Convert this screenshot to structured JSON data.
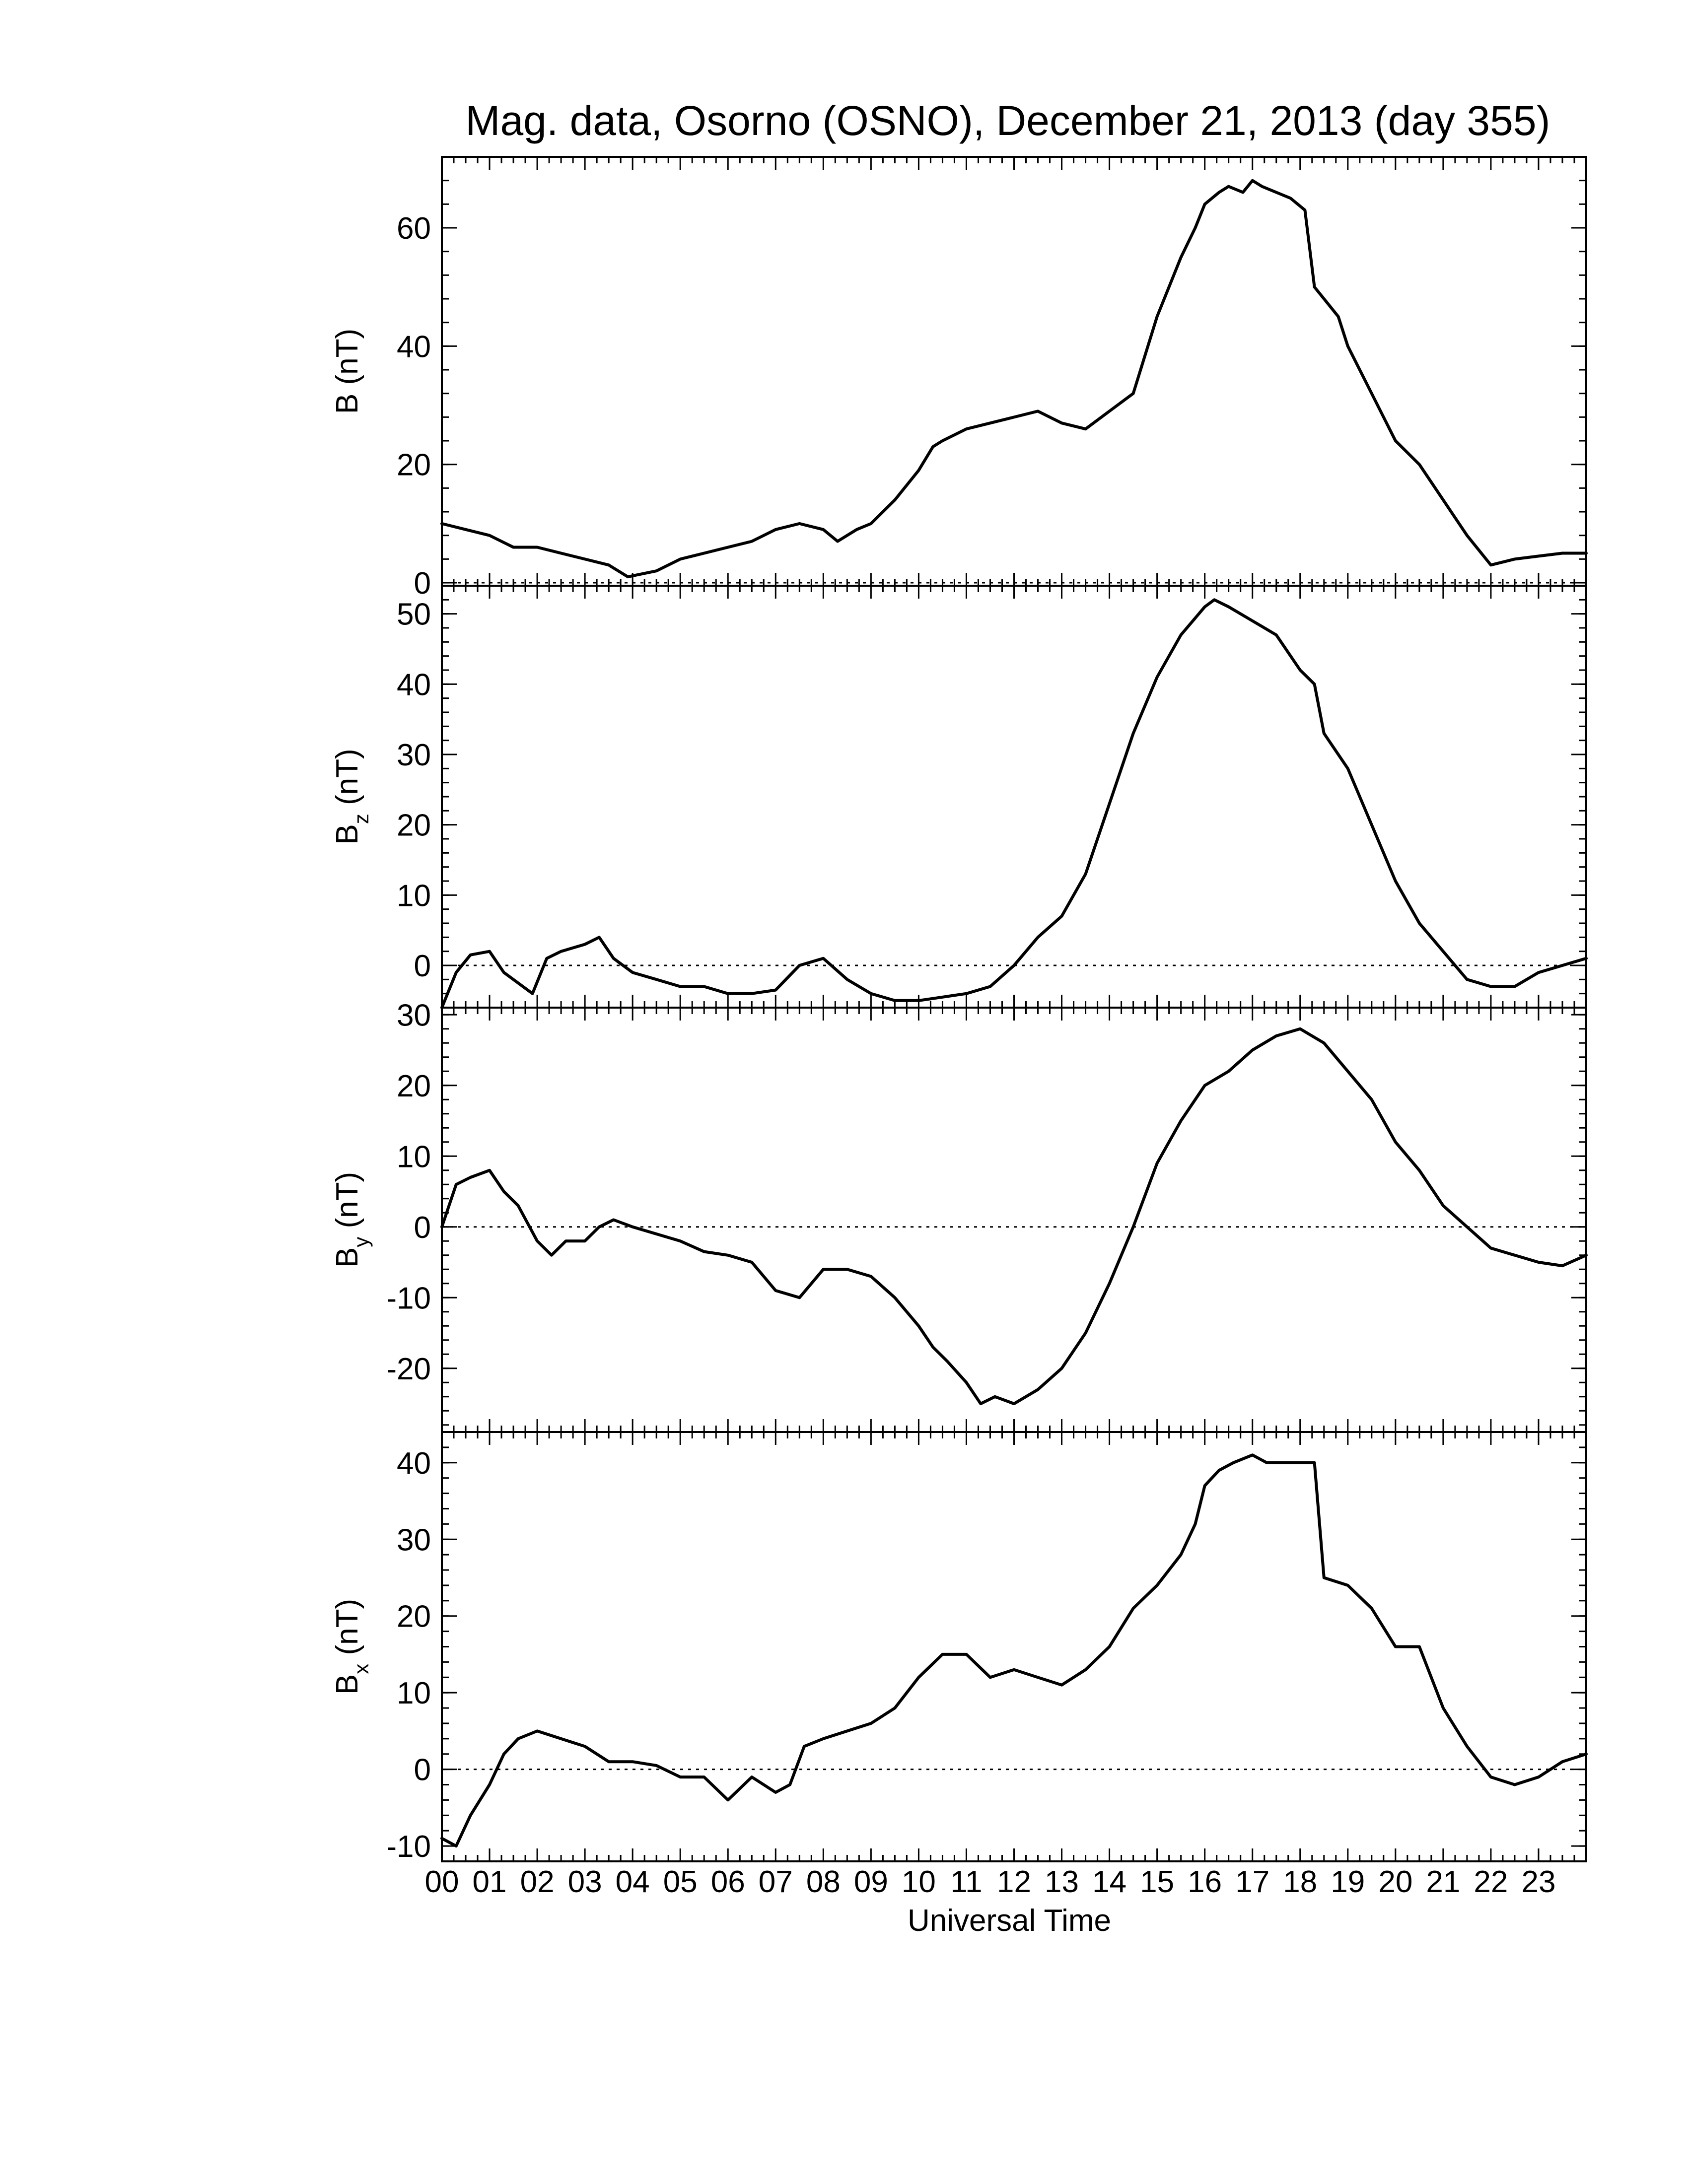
{
  "chart_data": {
    "type": "line",
    "title": "Mag. data, Osorno (OSNO), December 21, 2013 (day 355)",
    "xlabel": "Universal Time",
    "xlim": [
      0,
      24
    ],
    "x_tick_labels": [
      "00",
      "01",
      "02",
      "03",
      "04",
      "05",
      "06",
      "07",
      "08",
      "09",
      "10",
      "11",
      "12",
      "13",
      "14",
      "15",
      "16",
      "17",
      "18",
      "19",
      "20",
      "21",
      "22",
      "23"
    ],
    "line_color": "#000000",
    "panels": [
      {
        "id": "B",
        "ylabel": "B (nT)",
        "ylabel_main": "B",
        "ylabel_sub": "",
        "ylabel_unit": " (nT)",
        "ylim": [
          -0.5,
          72
        ],
        "y_ticks": [
          0,
          20,
          40,
          60
        ],
        "x": [
          0,
          0.5,
          1,
          1.5,
          2,
          2.5,
          3,
          3.5,
          3.9,
          4.5,
          5,
          5.5,
          6,
          6.5,
          7,
          7.5,
          8,
          8.3,
          8.7,
          9,
          9.5,
          10,
          10.3,
          10.5,
          11,
          11.5,
          12,
          12.5,
          13,
          13.5,
          14,
          14.5,
          15,
          15.5,
          15.8,
          16,
          16.3,
          16.5,
          16.8,
          17,
          17.2,
          17.5,
          17.8,
          18.1,
          18.3,
          18.5,
          18.8,
          19,
          19.5,
          20,
          20.5,
          21,
          21.5,
          22,
          22.5,
          23,
          23.5,
          24
        ],
        "values": [
          10,
          9,
          8,
          6,
          6,
          5,
          4,
          3,
          1,
          2,
          4,
          5,
          6,
          7,
          9,
          10,
          9,
          7,
          9,
          10,
          14,
          19,
          23,
          24,
          26,
          27,
          28,
          29,
          27,
          26,
          29,
          32,
          45,
          55,
          60,
          64,
          66,
          67,
          66,
          68,
          67,
          66,
          65,
          63,
          50,
          48,
          45,
          40,
          32,
          24,
          20,
          14,
          8,
          3,
          4,
          4.5,
          5,
          5
        ]
      },
      {
        "id": "Bz",
        "ylabel": "Bz (nT)",
        "ylabel_main": "B",
        "ylabel_sub": "z",
        "ylabel_unit": " (nT)",
        "ylim": [
          -6,
          54
        ],
        "y_ticks": [
          0,
          10,
          20,
          30,
          40,
          50
        ],
        "x": [
          0,
          0.3,
          0.6,
          1,
          1.3,
          1.6,
          1.9,
          2.2,
          2.5,
          3,
          3.3,
          3.6,
          4,
          4.5,
          5,
          5.5,
          6,
          6.5,
          7,
          7.5,
          8,
          8.5,
          9,
          9.5,
          10,
          10.5,
          11,
          11.5,
          12,
          12.5,
          13,
          13.5,
          14,
          14.5,
          15,
          15.5,
          16,
          16.2,
          16.5,
          17,
          17.5,
          18,
          18.3,
          18.5,
          19,
          19.5,
          20,
          20.5,
          21,
          21.5,
          22,
          22.5,
          23,
          23.5,
          24
        ],
        "values": [
          -6,
          -1,
          1.5,
          2,
          -1,
          -2.5,
          -4,
          1,
          2,
          3,
          4,
          1,
          -1,
          -2,
          -3,
          -3,
          -4,
          -4,
          -3.5,
          0,
          1,
          -2,
          -4,
          -5,
          -5,
          -4.5,
          -4,
          -3,
          0,
          4,
          7,
          13,
          23,
          33,
          41,
          47,
          51,
          52,
          51,
          49,
          47,
          42,
          40,
          33,
          28,
          20,
          12,
          6,
          2,
          -2,
          -3,
          -3,
          -1,
          0,
          1
        ]
      },
      {
        "id": "By",
        "ylabel": "By (nT)",
        "ylabel_main": "B",
        "ylabel_sub": "y",
        "ylabel_unit": " (nT)",
        "ylim": [
          -29,
          31
        ],
        "y_ticks": [
          -20,
          -10,
          0,
          10,
          20,
          30
        ],
        "x": [
          0,
          0.3,
          0.6,
          1,
          1.3,
          1.6,
          2,
          2.3,
          2.6,
          3,
          3.3,
          3.6,
          4,
          4.5,
          5,
          5.5,
          6,
          6.5,
          7,
          7.5,
          8,
          8.5,
          9,
          9.5,
          10,
          10.3,
          10.6,
          11,
          11.3,
          11.6,
          12,
          12.5,
          13,
          13.5,
          14,
          14.5,
          15,
          15.5,
          16,
          16.5,
          17,
          17.5,
          18,
          18.5,
          19,
          19.5,
          20,
          20.5,
          21,
          21.5,
          22,
          22.5,
          23,
          23.5,
          24
        ],
        "values": [
          0,
          6,
          7,
          8,
          5,
          3,
          -2,
          -4,
          -2,
          -2,
          0,
          1,
          0,
          -1,
          -2,
          -3.5,
          -4,
          -5,
          -9,
          -10,
          -6,
          -6,
          -7,
          -10,
          -14,
          -17,
          -19,
          -22,
          -25,
          -24,
          -25,
          -23,
          -20,
          -15,
          -8,
          0,
          9,
          15,
          20,
          22,
          25,
          27,
          28,
          26,
          22,
          18,
          12,
          8,
          3,
          0,
          -3,
          -4,
          -5,
          -5.5,
          -4
        ]
      },
      {
        "id": "Bx",
        "ylabel": "Bx (nT)",
        "ylabel_main": "B",
        "ylabel_sub": "x",
        "ylabel_unit": " (nT)",
        "ylim": [
          -12,
          44
        ],
        "y_ticks": [
          -10,
          0,
          10,
          20,
          30,
          40
        ],
        "x": [
          0,
          0.3,
          0.6,
          1,
          1.3,
          1.6,
          2,
          2.5,
          3,
          3.5,
          4,
          4.5,
          5,
          5.5,
          6,
          6.5,
          7,
          7.3,
          7.6,
          8,
          8.5,
          9,
          9.5,
          10,
          10.5,
          11,
          11.5,
          12,
          12.5,
          13,
          13.5,
          14,
          14.5,
          15,
          15.5,
          15.8,
          16,
          16.3,
          16.6,
          17,
          17.3,
          17.6,
          18,
          18.3,
          18.5,
          19,
          19.5,
          20,
          20.5,
          21,
          21.5,
          22,
          22.5,
          23,
          23.5,
          24
        ],
        "values": [
          -9,
          -10,
          -6,
          -2,
          2,
          4,
          5,
          4,
          3,
          1,
          1,
          0.5,
          -1,
          -1,
          -4,
          -1,
          -3,
          -2,
          3,
          4,
          5,
          6,
          8,
          12,
          15,
          15,
          12,
          13,
          12,
          11,
          13,
          16,
          21,
          24,
          28,
          32,
          37,
          39,
          40,
          41,
          40,
          40,
          40,
          40,
          25,
          24,
          21,
          16,
          16,
          8,
          3,
          -1,
          -2,
          -1,
          1,
          2
        ]
      }
    ]
  }
}
